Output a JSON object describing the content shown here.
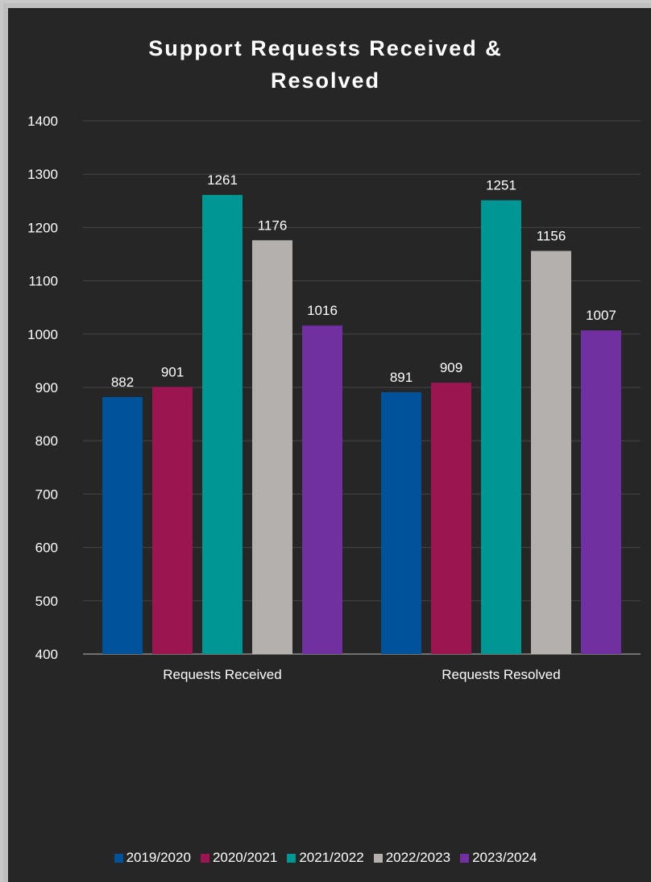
{
  "chart_data": {
    "type": "bar",
    "title": "Support Requests Received & Resolved",
    "title_lines": [
      "Support Requests Received &",
      "Resolved"
    ],
    "categories": [
      "Requests Received",
      "Requests Resolved"
    ],
    "series": [
      {
        "name": "2019/2020",
        "values": [
          882,
          891
        ],
        "color": "#00539b"
      },
      {
        "name": "2020/2021",
        "values": [
          901,
          909
        ],
        "color": "#9b1650"
      },
      {
        "name": "2021/2022",
        "values": [
          1261,
          1251
        ],
        "color": "#009694"
      },
      {
        "name": "2022/2023",
        "values": [
          1176,
          1156
        ],
        "color": "#b3b0ae"
      },
      {
        "name": "2023/2024",
        "values": [
          1016,
          1007
        ],
        "color": "#7030a0"
      }
    ],
    "ylim": [
      400,
      1400
    ],
    "yticks": [
      "400",
      "500",
      "600",
      "700",
      "800",
      "900",
      "1000",
      "1100",
      "1200",
      "1300",
      "1400"
    ],
    "grid": true,
    "legend_position": "bottom",
    "background": "#262626"
  }
}
